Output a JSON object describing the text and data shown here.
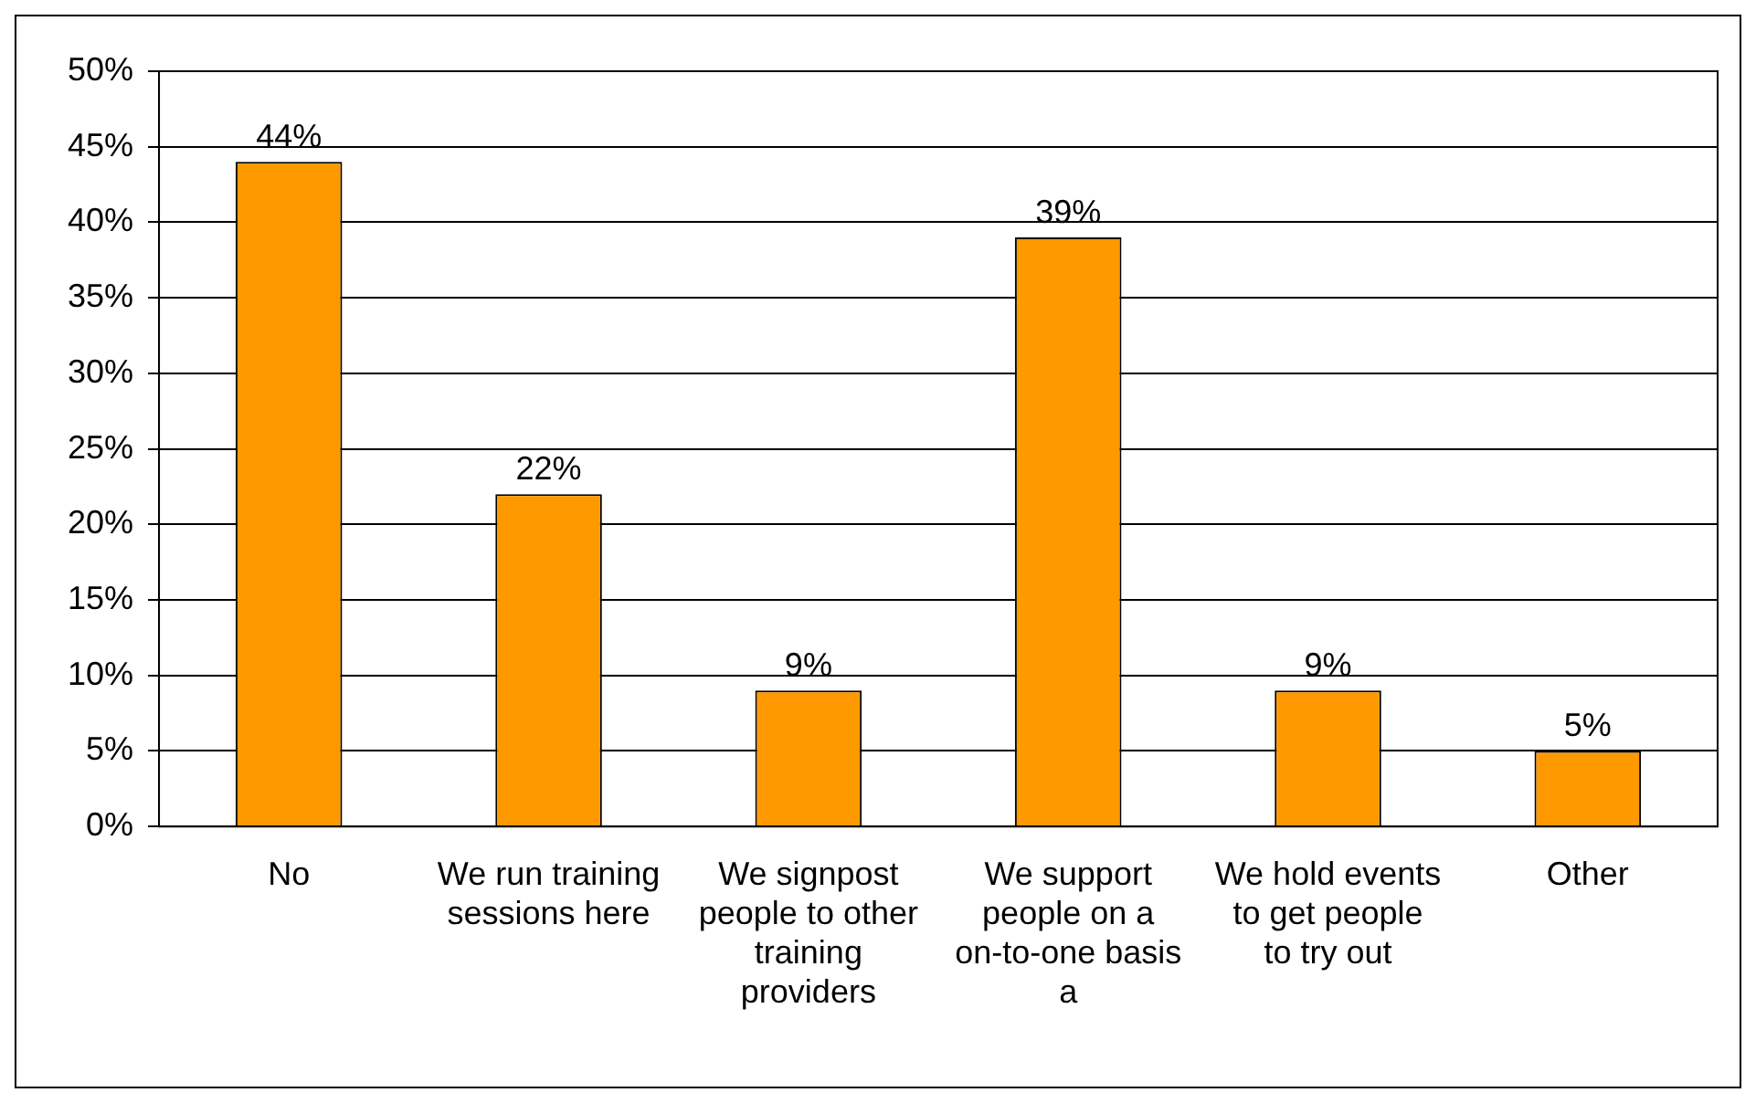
{
  "chart_data": {
    "type": "bar",
    "categories": [
      "No",
      "We run training sessions here",
      "We signpost people to other training providers",
      "We support people on a on-to-one basis a",
      "We hold events to get people to try out",
      "Other"
    ],
    "values": [
      44,
      22,
      9,
      39,
      9,
      5
    ],
    "value_labels": [
      "44%",
      "22%",
      "9%",
      "39%",
      "9%",
      "5%"
    ],
    "color": "#ff9900",
    "ylim": [
      0,
      50
    ],
    "yticks": [
      {
        "value": 0,
        "label": "0%"
      },
      {
        "value": 5,
        "label": "5%"
      },
      {
        "value": 10,
        "label": "10%"
      },
      {
        "value": 15,
        "label": "15%"
      },
      {
        "value": 20,
        "label": "20%"
      },
      {
        "value": 25,
        "label": "25%"
      },
      {
        "value": 30,
        "label": "30%"
      },
      {
        "value": 35,
        "label": "35%"
      },
      {
        "value": 40,
        "label": "40%"
      },
      {
        "value": 45,
        "label": "45%"
      },
      {
        "value": 50,
        "label": "50%"
      }
    ],
    "grid": "y",
    "legend": false
  }
}
